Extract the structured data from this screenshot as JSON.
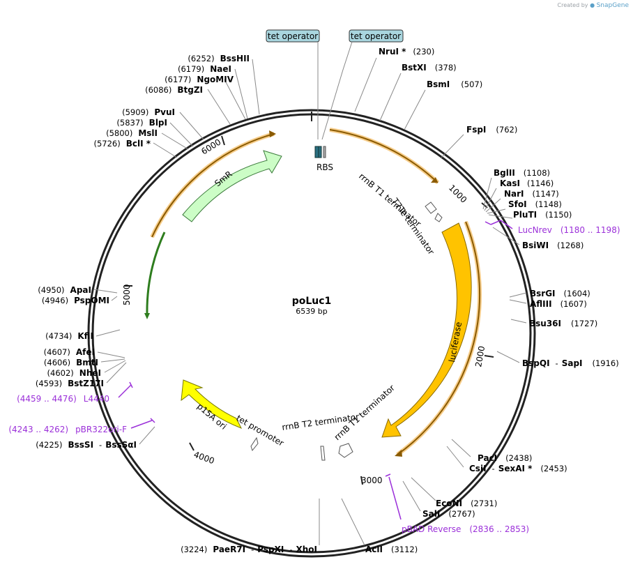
{
  "brand": {
    "created_by": "Created by",
    "app": "SnapGene"
  },
  "plasmid": {
    "name": "poLuc1",
    "size": "6539 bp"
  },
  "ticks": [
    "1000",
    "2000",
    "3000",
    "4000",
    "5000",
    "6000"
  ],
  "top_features": [
    "tet operator",
    "tet operator"
  ],
  "features": {
    "smr": "SmR",
    "luciferase": "luciferase",
    "p15a": "p15A ori",
    "rbs": "RBS",
    "rrnb_t1_a": "rrnB T1 terminator",
    "t7te": "T7Te terminator",
    "rrnb_t2": "rrnB T2 terminator",
    "rrnb_t1_b": "rrnB T1 terminator",
    "tet_promoter": "tet promoter"
  },
  "right_sites": [
    {
      "name": "NruI *",
      "pos": "(230)"
    },
    {
      "name": "BstXI",
      "pos": "(378)"
    },
    {
      "name": "BsmI",
      "pos": "(507)"
    },
    {
      "name": "FspI",
      "pos": "(762)"
    },
    {
      "name": "BglII",
      "pos": "(1108)"
    },
    {
      "name": "KasI",
      "pos": "(1146)"
    },
    {
      "name": "NarI",
      "pos": "(1147)"
    },
    {
      "name": "SfoI",
      "pos": "(1148)"
    },
    {
      "name": "PluTI",
      "pos": "(1150)"
    },
    {
      "name": "BsiWI",
      "pos": "(1268)"
    },
    {
      "name": "BsrGI",
      "pos": "(1604)"
    },
    {
      "name": "AflIII",
      "pos": "(1607)"
    },
    {
      "name": "Bsu36I",
      "pos": "(1727)"
    },
    {
      "name": "BspQI",
      "sep": "-",
      "name2": "SapI",
      "pos": "(1916)"
    },
    {
      "name": "PacI",
      "pos": "(2438)"
    },
    {
      "name": "CsiI",
      "sep": "-",
      "name2": "SexAI *",
      "pos": "(2453)"
    },
    {
      "name": "EcoNI",
      "pos": "(2731)"
    },
    {
      "name": "SalI",
      "pos": "(2767)"
    },
    {
      "name": "AclI",
      "pos": "(3112)"
    }
  ],
  "left_sites": [
    {
      "pos": "(6252)",
      "name": "BssHII"
    },
    {
      "pos": "(6179)",
      "name": "NaeI"
    },
    {
      "pos": "(6177)",
      "name": "NgoMIV"
    },
    {
      "pos": "(6086)",
      "name": "BtgZI"
    },
    {
      "pos": "(5909)",
      "name": "PvuI"
    },
    {
      "pos": "(5837)",
      "name": "BlpI"
    },
    {
      "pos": "(5800)",
      "name": "MslI"
    },
    {
      "pos": "(5726)",
      "name": "BclI *"
    },
    {
      "pos": "(4950)",
      "name": "ApaI"
    },
    {
      "pos": "(4946)",
      "name": "PspOMI"
    },
    {
      "pos": "(4734)",
      "name": "KflI"
    },
    {
      "pos": "(4607)",
      "name": "AfeI"
    },
    {
      "pos": "(4606)",
      "name": "BmtI"
    },
    {
      "pos": "(4602)",
      "name": "NheI"
    },
    {
      "pos": "(4593)",
      "name": "BstZ17I"
    },
    {
      "pos": "(4225)",
      "name": "BssSI",
      "sep": "-",
      "name2": "BssSαI"
    },
    {
      "pos": "(3224)",
      "name": "PaeR7I",
      "sep": "-",
      "name2": "PspXI",
      "sep2": "-",
      "name3": "XhoI"
    }
  ],
  "primers": [
    {
      "name": "LucNrev",
      "range": "(1180 .. 1198)"
    },
    {
      "name": "pBAD Reverse",
      "range": "(2836 .. 2853)"
    },
    {
      "name": "L4440",
      "range": "(4459 .. 4476)"
    },
    {
      "name": "pBR322ori-F",
      "range": "(4243 .. 4262)"
    }
  ]
}
